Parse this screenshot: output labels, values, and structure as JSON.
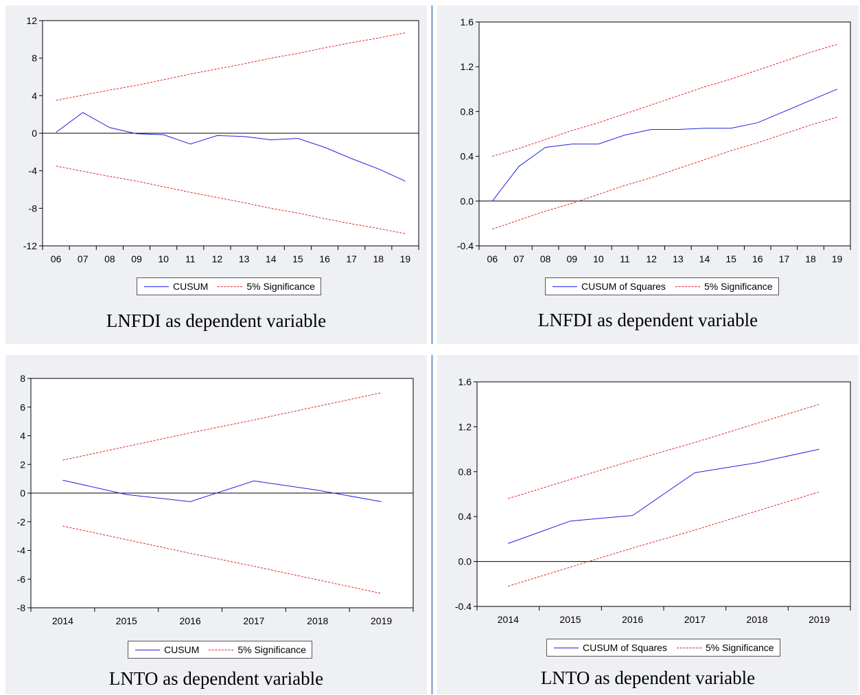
{
  "chart_data": [
    {
      "type": "line",
      "categories": [
        "06",
        "07",
        "08",
        "09",
        "10",
        "11",
        "12",
        "13",
        "14",
        "15",
        "16",
        "17",
        "18",
        "19"
      ],
      "ylim": [
        -12,
        12
      ],
      "yticks": [
        "12",
        "8",
        "4",
        "0",
        "-4",
        "-8",
        "-12"
      ],
      "series": [
        {
          "name": "CUSUM",
          "values": [
            0.1,
            2.2,
            0.6,
            -0.05,
            -0.15,
            -1.15,
            -0.25,
            -0.35,
            -0.7,
            -0.55,
            -1.5,
            -2.7,
            -3.8,
            -5.1
          ]
        },
        {
          "name": "5% Significance",
          "values": [
            3.5,
            4.05,
            4.6,
            5.1,
            5.7,
            6.3,
            6.85,
            7.4,
            8.0,
            8.5,
            9.1,
            9.65,
            10.15,
            10.7
          ]
        },
        {
          "name": "",
          "values": [
            -3.5,
            -4.05,
            -4.6,
            -5.1,
            -5.7,
            -6.3,
            -6.85,
            -7.4,
            -8.0,
            -8.5,
            -9.1,
            -9.65,
            -10.15,
            -10.7
          ]
        }
      ],
      "legend": [
        "CUSUM",
        "5% Significance"
      ],
      "caption": "LNFDI as dependent variable"
    },
    {
      "type": "line",
      "categories": [
        "06",
        "07",
        "08",
        "09",
        "10",
        "11",
        "12",
        "13",
        "14",
        "15",
        "16",
        "17",
        "18",
        "19"
      ],
      "ylim": [
        -0.4,
        1.6
      ],
      "yticks": [
        "1.6",
        "1.2",
        "0.8",
        "0.4",
        "0.0",
        "-0.4"
      ],
      "series": [
        {
          "name": "CUSUM of Squares",
          "values": [
            0.0,
            0.31,
            0.48,
            0.51,
            0.51,
            0.59,
            0.64,
            0.64,
            0.65,
            0.65,
            0.7,
            0.8,
            0.9,
            1.0
          ]
        },
        {
          "name": "5% Significance",
          "values": [
            0.4,
            0.47,
            0.55,
            0.63,
            0.7,
            0.78,
            0.86,
            0.94,
            1.02,
            1.09,
            1.17,
            1.25,
            1.33,
            1.4
          ]
        },
        {
          "name": "",
          "values": [
            -0.25,
            -0.17,
            -0.09,
            -0.02,
            0.06,
            0.14,
            0.21,
            0.29,
            0.37,
            0.45,
            0.52,
            0.6,
            0.68,
            0.75
          ]
        }
      ],
      "legend": [
        "CUSUM of Squares",
        "5% Significance"
      ],
      "caption": "LNFDI as dependent variable"
    },
    {
      "type": "line",
      "categories": [
        "2014",
        "2015",
        "2016",
        "2017",
        "2018",
        "2019"
      ],
      "ylim": [
        -8,
        8
      ],
      "yticks": [
        "8",
        "6",
        "4",
        "2",
        "0",
        "-2",
        "-4",
        "-6",
        "-8"
      ],
      "series": [
        {
          "name": "CUSUM",
          "values": [
            0.9,
            -0.1,
            -0.6,
            0.85,
            0.2,
            -0.6
          ]
        },
        {
          "name": "5% Significance",
          "values": [
            2.3,
            3.25,
            4.2,
            5.1,
            6.05,
            7.0
          ]
        },
        {
          "name": "",
          "values": [
            -2.3,
            -3.25,
            -4.2,
            -5.1,
            -6.05,
            -7.0
          ]
        }
      ],
      "legend": [
        "CUSUM",
        "5% Significance"
      ],
      "caption": "LNTO as dependent variable"
    },
    {
      "type": "line",
      "categories": [
        "2014",
        "2015",
        "2016",
        "2017",
        "2018",
        "2019"
      ],
      "ylim": [
        -0.4,
        1.6
      ],
      "yticks": [
        "1.6",
        "1.2",
        "0.8",
        "0.4",
        "0.0",
        "-0.4"
      ],
      "series": [
        {
          "name": "CUSUM of Squares",
          "values": [
            0.16,
            0.36,
            0.41,
            0.79,
            0.88,
            1.0
          ]
        },
        {
          "name": "5% Significance",
          "values": [
            0.56,
            0.73,
            0.9,
            1.06,
            1.23,
            1.4
          ]
        },
        {
          "name": "",
          "values": [
            -0.22,
            -0.05,
            0.12,
            0.28,
            0.45,
            0.62
          ]
        }
      ],
      "legend": [
        "CUSUM of Squares",
        "5% Significance"
      ],
      "caption": "LNTO as dependent variable"
    }
  ]
}
